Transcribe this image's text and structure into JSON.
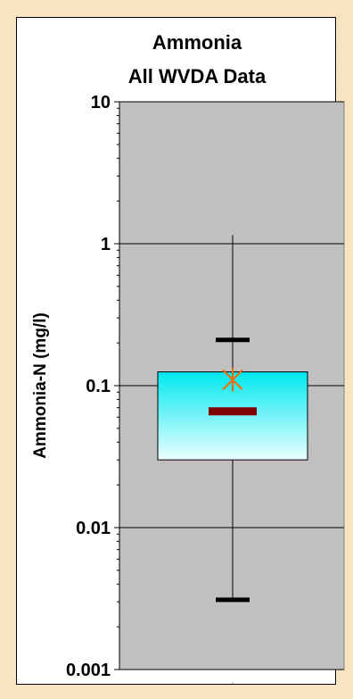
{
  "chart_data": {
    "type": "box",
    "title_lines": [
      "Ammonia",
      "All WVDA Data"
    ],
    "ylabel": "Ammonia-N (mg/l)",
    "xlabel": "",
    "yscale": "log",
    "ylim": [
      0.001,
      10
    ],
    "yticks": [
      {
        "value": 10,
        "label": "10"
      },
      {
        "value": 1,
        "label": "1"
      },
      {
        "value": 0.1,
        "label": "0.1"
      },
      {
        "value": 0.01,
        "label": "0.01"
      },
      {
        "value": 0.001,
        "label": "0.001"
      }
    ],
    "grid": true,
    "box": {
      "whisker_high": 1.15,
      "q3": 0.125,
      "q1": 0.03,
      "median": 0.066,
      "mean": 0.11,
      "upper_mark": 0.21,
      "lower_mark": 0.0031
    },
    "colors": {
      "plot_background": "#c0c0c0",
      "box_top": "#00e8f0",
      "box_bottom": "#ecffff",
      "median": "#800000",
      "mean_marker": "#ff6600",
      "marks": "#000000"
    }
  }
}
